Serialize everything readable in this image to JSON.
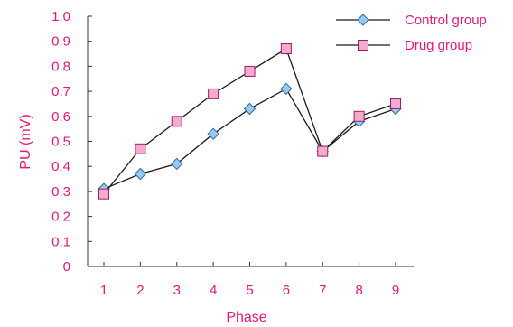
{
  "chart_data": {
    "type": "line",
    "title": "",
    "xlabel": "Phase",
    "ylabel": "PU (mV)",
    "x": [
      "1",
      "2",
      "3",
      "4",
      "5",
      "6",
      "7",
      "8",
      "9"
    ],
    "ylim": [
      0,
      1.0
    ],
    "yticks": [
      "0",
      "0.1",
      "0.2",
      "0.3",
      "0.4",
      "0.5",
      "0.6",
      "0.7",
      "0.8",
      "0.9",
      "1.0"
    ],
    "grid": false,
    "legend_position": "top-right",
    "label_color": "#e0197a",
    "series": [
      {
        "name": "Control group",
        "marker": "diamond",
        "color": "#9ac8ee",
        "values": [
          0.31,
          0.37,
          0.41,
          0.53,
          0.63,
          0.71,
          0.46,
          0.58,
          0.63
        ]
      },
      {
        "name": "Drug group",
        "marker": "square",
        "color": "#f4a9cf",
        "values": [
          0.29,
          0.47,
          0.58,
          0.69,
          0.78,
          0.87,
          0.46,
          0.6,
          0.65
        ]
      }
    ]
  }
}
